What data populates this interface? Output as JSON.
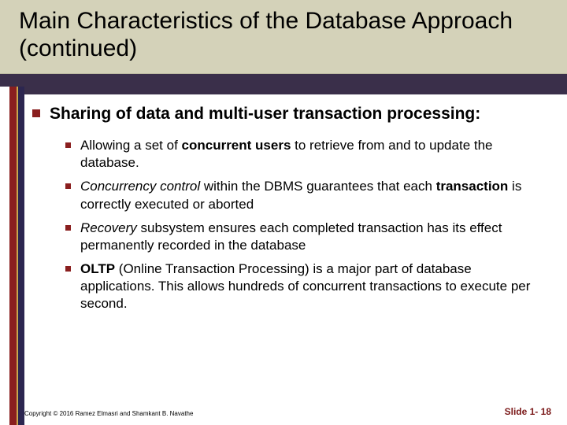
{
  "title": "Main Characteristics of the Database Approach (continued)",
  "main_heading": "Sharing of data and multi-user transaction processing:",
  "bullets": [
    {
      "seg1": "Allowing a set of ",
      "seg1_b": "concurrent users",
      "seg2": " to retrieve from and to update the database."
    },
    {
      "seg1_i": "Concurrency control",
      "seg2": " within the DBMS guarantees that each ",
      "seg2_b": "transaction",
      "seg3": " is correctly executed or aborted"
    },
    {
      "seg1_i": "Recovery",
      "seg2": " subsystem ensures each completed transaction has its effect permanently recorded in the database"
    },
    {
      "seg1_b": "OLTP",
      "seg2": " (Online Transaction Processing) is a major part of database applications. This allows hundreds of concurrent transactions to execute per second."
    }
  ],
  "copyright": "Copyright © 2016 Ramez Elmasri and Shamkant B. Navathe",
  "slide_number": "Slide 1- 18",
  "colors": {
    "title_band": "#d4d2b9",
    "dark_band": "#3a2f4a",
    "stripe_red": "#8a1f1f",
    "stripe_gold": "#c9a84e",
    "stripe_navy": "#2c2650",
    "bullet": "#8a1f1f",
    "slidenum": "#7a1818"
  },
  "typography": {
    "title_fontsize": 30,
    "heading_fontsize": 21,
    "body_fontsize": 17,
    "copyright_fontsize": 8,
    "slidenum_fontsize": 12
  }
}
